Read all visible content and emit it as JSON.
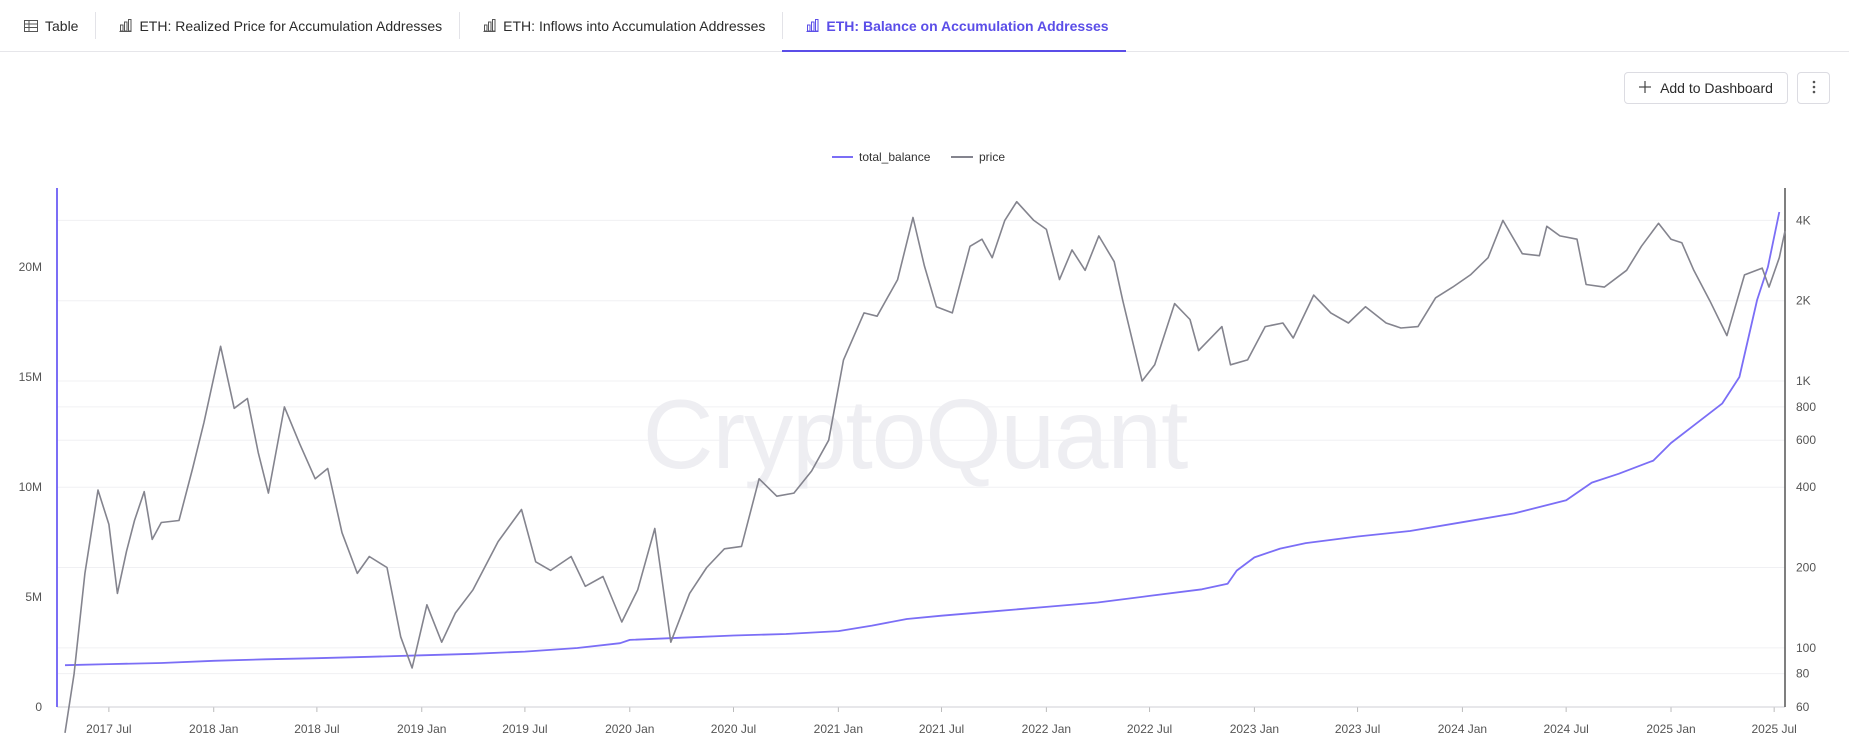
{
  "tabs": [
    {
      "label": "Table",
      "icon": "table-icon",
      "active": false
    },
    {
      "label": "ETH: Realized Price for Accumulation Addresses",
      "icon": "bar-chart-icon",
      "active": false
    },
    {
      "label": "ETH: Inflows into Accumulation Addresses",
      "icon": "bar-chart-icon",
      "active": false
    },
    {
      "label": "ETH: Balance on Accumulation Addresses",
      "icon": "bar-chart-icon",
      "active": true
    }
  ],
  "toolbar": {
    "add_label": "Add to Dashboard",
    "add_icon": "plus-icon",
    "more_icon": "kebab-menu-icon"
  },
  "watermark": "CryptoQuant",
  "colors": {
    "accent": "#5b4ee8",
    "total_balance": "#7b6ef6",
    "price": "#84848e"
  },
  "chart_data": {
    "type": "line",
    "legend": [
      "total_balance",
      "price"
    ],
    "legend_position": "top-center",
    "grid": true,
    "x_ticks": [
      "2017 Jul",
      "2018 Jan",
      "2018 Jul",
      "2019 Jan",
      "2019 Jul",
      "2020 Jan",
      "2020 Jul",
      "2021 Jan",
      "2021 Jul",
      "2022 Jan",
      "2022 Jul",
      "2023 Jan",
      "2023 Jul",
      "2024 Jan",
      "2024 Jul",
      "2025 Jan",
      "2025 Jul"
    ],
    "x_range": [
      "2017-04-01",
      "2025-07-20"
    ],
    "y_left": {
      "series": "total_balance",
      "ticks": [
        "0",
        "5M",
        "10M",
        "15M",
        "20M"
      ],
      "tick_values": [
        0,
        5000000,
        10000000,
        15000000,
        20000000
      ],
      "ylim": [
        0,
        23500000
      ]
    },
    "y_right": {
      "series": "price",
      "scale": "log",
      "ticks": [
        "60",
        "80",
        "100",
        "200",
        "400",
        "600",
        "800",
        "1K",
        "2K",
        "4K"
      ],
      "tick_values": [
        60,
        80,
        100,
        200,
        400,
        600,
        800,
        1000,
        2000,
        4000
      ],
      "ylim": [
        60,
        5200
      ]
    },
    "series": [
      {
        "name": "total_balance",
        "axis": "left",
        "points": [
          [
            "2017-04-15",
            1900000
          ],
          [
            "2017-07-01",
            1950000
          ],
          [
            "2017-10-01",
            2000000
          ],
          [
            "2018-01-01",
            2100000
          ],
          [
            "2018-04-01",
            2170000
          ],
          [
            "2018-07-01",
            2220000
          ],
          [
            "2018-10-01",
            2280000
          ],
          [
            "2019-01-01",
            2350000
          ],
          [
            "2019-04-01",
            2420000
          ],
          [
            "2019-07-01",
            2520000
          ],
          [
            "2019-10-01",
            2680000
          ],
          [
            "2019-12-15",
            2900000
          ],
          [
            "2020-01-01",
            3050000
          ],
          [
            "2020-04-01",
            3150000
          ],
          [
            "2020-07-01",
            3250000
          ],
          [
            "2020-10-01",
            3320000
          ],
          [
            "2021-01-01",
            3450000
          ],
          [
            "2021-03-01",
            3700000
          ],
          [
            "2021-05-01",
            4000000
          ],
          [
            "2021-07-01",
            4150000
          ],
          [
            "2021-10-01",
            4350000
          ],
          [
            "2022-01-01",
            4550000
          ],
          [
            "2022-04-01",
            4750000
          ],
          [
            "2022-07-01",
            5050000
          ],
          [
            "2022-10-01",
            5350000
          ],
          [
            "2022-11-15",
            5600000
          ],
          [
            "2022-12-01",
            6200000
          ],
          [
            "2023-01-01",
            6800000
          ],
          [
            "2023-02-15",
            7200000
          ],
          [
            "2023-04-01",
            7450000
          ],
          [
            "2023-07-01",
            7750000
          ],
          [
            "2023-10-01",
            8000000
          ],
          [
            "2024-01-01",
            8400000
          ],
          [
            "2024-04-01",
            8800000
          ],
          [
            "2024-07-01",
            9400000
          ],
          [
            "2024-08-15",
            10200000
          ],
          [
            "2024-10-01",
            10600000
          ],
          [
            "2024-12-01",
            11200000
          ],
          [
            "2025-01-01",
            12000000
          ],
          [
            "2025-02-15",
            12900000
          ],
          [
            "2025-04-01",
            13800000
          ],
          [
            "2025-05-01",
            15000000
          ],
          [
            "2025-06-01",
            18500000
          ],
          [
            "2025-06-20",
            20000000
          ],
          [
            "2025-07-10",
            22500000
          ]
        ]
      },
      {
        "name": "price",
        "axis": "right",
        "points": [
          [
            "2017-04-15",
            48
          ],
          [
            "2017-05-01",
            80
          ],
          [
            "2017-05-20",
            190
          ],
          [
            "2017-06-12",
            390
          ],
          [
            "2017-07-01",
            290
          ],
          [
            "2017-07-16",
            160
          ],
          [
            "2017-08-01",
            230
          ],
          [
            "2017-08-15",
            300
          ],
          [
            "2017-09-01",
            385
          ],
          [
            "2017-09-15",
            255
          ],
          [
            "2017-10-01",
            295
          ],
          [
            "2017-11-01",
            300
          ],
          [
            "2017-11-25",
            470
          ],
          [
            "2017-12-15",
            700
          ],
          [
            "2018-01-13",
            1350
          ],
          [
            "2018-02-06",
            790
          ],
          [
            "2018-03-01",
            860
          ],
          [
            "2018-03-20",
            540
          ],
          [
            "2018-04-07",
            380
          ],
          [
            "2018-05-05",
            800
          ],
          [
            "2018-06-01",
            580
          ],
          [
            "2018-06-28",
            430
          ],
          [
            "2018-07-20",
            470
          ],
          [
            "2018-08-14",
            270
          ],
          [
            "2018-09-10",
            190
          ],
          [
            "2018-10-01",
            220
          ],
          [
            "2018-11-01",
            200
          ],
          [
            "2018-11-25",
            110
          ],
          [
            "2018-12-15",
            84
          ],
          [
            "2019-01-10",
            145
          ],
          [
            "2019-02-05",
            105
          ],
          [
            "2019-03-01",
            135
          ],
          [
            "2019-04-01",
            165
          ],
          [
            "2019-05-15",
            250
          ],
          [
            "2019-06-25",
            330
          ],
          [
            "2019-07-20",
            210
          ],
          [
            "2019-08-15",
            195
          ],
          [
            "2019-09-20",
            220
          ],
          [
            "2019-10-15",
            170
          ],
          [
            "2019-11-15",
            185
          ],
          [
            "2019-12-18",
            125
          ],
          [
            "2020-01-15",
            165
          ],
          [
            "2020-02-14",
            280
          ],
          [
            "2020-03-13",
            105
          ],
          [
            "2020-04-15",
            160
          ],
          [
            "2020-05-15",
            200
          ],
          [
            "2020-06-15",
            235
          ],
          [
            "2020-07-15",
            240
          ],
          [
            "2020-08-15",
            430
          ],
          [
            "2020-09-15",
            370
          ],
          [
            "2020-10-15",
            380
          ],
          [
            "2020-11-15",
            460
          ],
          [
            "2020-12-15",
            600
          ],
          [
            "2021-01-10",
            1200
          ],
          [
            "2021-02-15",
            1800
          ],
          [
            "2021-03-10",
            1750
          ],
          [
            "2021-04-15",
            2400
          ],
          [
            "2021-05-12",
            4100
          ],
          [
            "2021-06-01",
            2700
          ],
          [
            "2021-06-22",
            1900
          ],
          [
            "2021-07-20",
            1800
          ],
          [
            "2021-08-20",
            3200
          ],
          [
            "2021-09-10",
            3400
          ],
          [
            "2021-09-28",
            2900
          ],
          [
            "2021-10-20",
            4000
          ],
          [
            "2021-11-10",
            4700
          ],
          [
            "2021-12-10",
            4000
          ],
          [
            "2022-01-01",
            3700
          ],
          [
            "2022-01-24",
            2400
          ],
          [
            "2022-02-15",
            3100
          ],
          [
            "2022-03-10",
            2600
          ],
          [
            "2022-04-03",
            3500
          ],
          [
            "2022-04-30",
            2800
          ],
          [
            "2022-05-15",
            2000
          ],
          [
            "2022-06-18",
            1000
          ],
          [
            "2022-07-10",
            1150
          ],
          [
            "2022-08-14",
            1950
          ],
          [
            "2022-09-10",
            1700
          ],
          [
            "2022-09-25",
            1300
          ],
          [
            "2022-11-05",
            1600
          ],
          [
            "2022-11-20",
            1150
          ],
          [
            "2022-12-20",
            1200
          ],
          [
            "2023-01-20",
            1600
          ],
          [
            "2023-02-20",
            1650
          ],
          [
            "2023-03-10",
            1450
          ],
          [
            "2023-04-15",
            2100
          ],
          [
            "2023-05-15",
            1800
          ],
          [
            "2023-06-15",
            1650
          ],
          [
            "2023-07-15",
            1900
          ],
          [
            "2023-08-20",
            1650
          ],
          [
            "2023-09-15",
            1580
          ],
          [
            "2023-10-15",
            1600
          ],
          [
            "2023-11-15",
            2050
          ],
          [
            "2023-12-15",
            2250
          ],
          [
            "2024-01-15",
            2500
          ],
          [
            "2024-02-15",
            2900
          ],
          [
            "2024-03-12",
            4000
          ],
          [
            "2024-04-15",
            3000
          ],
          [
            "2024-05-15",
            2950
          ],
          [
            "2024-05-28",
            3800
          ],
          [
            "2024-06-20",
            3500
          ],
          [
            "2024-07-20",
            3400
          ],
          [
            "2024-08-05",
            2300
          ],
          [
            "2024-09-06",
            2250
          ],
          [
            "2024-10-15",
            2600
          ],
          [
            "2024-11-10",
            3200
          ],
          [
            "2024-12-10",
            3900
          ],
          [
            "2025-01-01",
            3400
          ],
          [
            "2025-01-20",
            3300
          ],
          [
            "2025-02-10",
            2600
          ],
          [
            "2025-03-10",
            2000
          ],
          [
            "2025-04-09",
            1480
          ],
          [
            "2025-05-10",
            2500
          ],
          [
            "2025-06-10",
            2650
          ],
          [
            "2025-06-22",
            2250
          ],
          [
            "2025-07-10",
            2900
          ],
          [
            "2025-07-20",
            3650
          ]
        ]
      }
    ]
  }
}
